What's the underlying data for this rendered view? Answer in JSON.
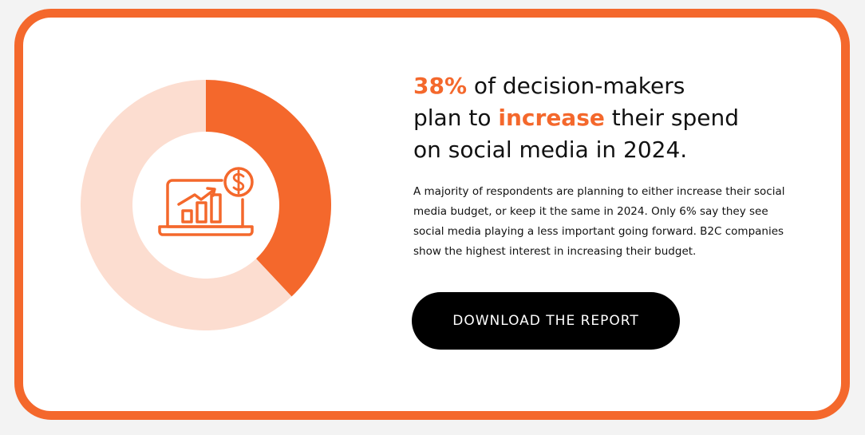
{
  "chart_data": {
    "type": "donut",
    "values": [
      38,
      62
    ],
    "colors": [
      "#f4682c",
      "#fcddd0"
    ]
  },
  "headline": [
    [
      "38%",
      " of decision-makers"
    ],
    [
      "plan to ",
      "increase",
      " their spend"
    ],
    [
      "on social media in 2024."
    ]
  ],
  "body": [
    "A majority of respondents are planning to either increase their social",
    "media budget, or keep it the same in 2024. Only 6% say they see",
    "social media playing a less important going forward. B2C companies",
    "show the highest interest in increasing their budget."
  ],
  "button": "DOWNLOAD THE REPORT"
}
